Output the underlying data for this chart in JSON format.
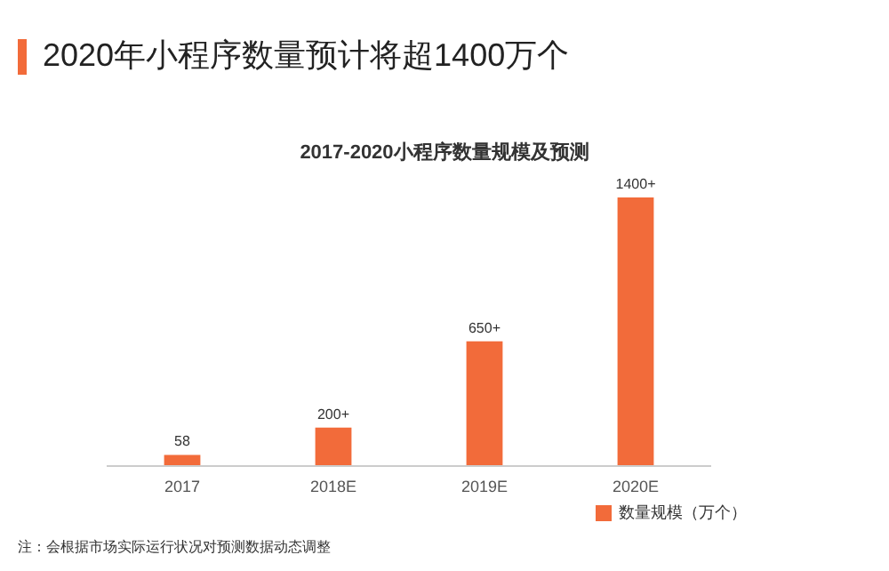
{
  "chart_data": {
    "type": "bar",
    "title": "2020年小程序数量预计将超1400万个",
    "subtitle": "2017-2020小程序数量规模及预测",
    "categories": [
      "2017",
      "2018E",
      "2019E",
      "2020E"
    ],
    "series": [
      {
        "name": "数量规模（万个）",
        "color": "#f26b3a",
        "values": [
          58,
          200,
          650,
          1400
        ],
        "value_labels": [
          "58",
          "200+",
          "650+",
          "1400+"
        ]
      }
    ],
    "legend": "bottom",
    "grid": false,
    "annotations": [
      "注：会根据市场实际运行状况对预测数据动态调整"
    ]
  }
}
